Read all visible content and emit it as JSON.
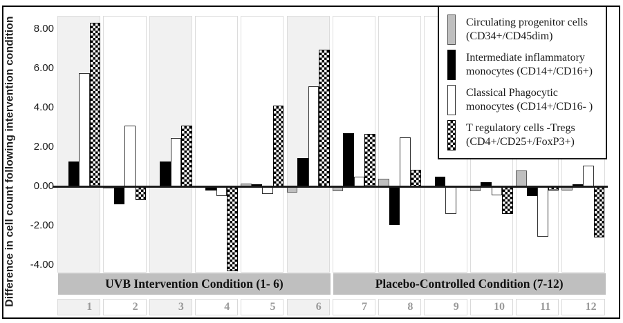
{
  "figure": {
    "y_axis_title": "Difference in cell count following intervention condition"
  },
  "colors": {
    "gray_bar": "#bfbfbf",
    "black_bar": "#000000",
    "white_bar": "#ffffff",
    "checker_fg": "#000000",
    "band_background": "#bfbfbf",
    "panel_shade": "#f1f1f1",
    "category_number_color": "#999999"
  },
  "chart_data": {
    "type": "bar",
    "title": "",
    "xlabel": "",
    "ylabel": "Difference in cell count following intervention condition",
    "categories": [
      "1",
      "2",
      "3",
      "4",
      "5",
      "6",
      "7",
      "8",
      "9",
      "10",
      "11",
      "12"
    ],
    "y_tick_labels": [
      "8.00",
      "6.00",
      "4.00",
      "2.00",
      "0.00",
      "-2.00",
      "-4.00"
    ],
    "y_tick_values": [
      8,
      6,
      4,
      2,
      0,
      -2,
      -4
    ],
    "ylim": [
      -4.6,
      8.7
    ],
    "grid": "off",
    "legend_position": "top-right-inset",
    "shaded_groups": [
      1,
      3,
      6
    ],
    "series": [
      {
        "name": "Circulating progenitor cells (CD34+/CD45dim)",
        "legend_line1": "Circulating progenitor cells",
        "legend_line2": "(CD34+/CD45dim)",
        "style": "gray",
        "values": [
          0,
          -0.1,
          0,
          0,
          0.15,
          -0.3,
          -0.25,
          0.4,
          0,
          -0.25,
          0.8,
          -0.2
        ]
      },
      {
        "name": "Intermediate inflammatory monocytes (CD14+/CD16+)",
        "legend_line1": "Intermediate inflammatory",
        "legend_line2": "monocytes (CD14+/CD16+)",
        "style": "black",
        "values": [
          1.25,
          -0.9,
          1.25,
          -0.2,
          0.1,
          1.45,
          2.7,
          -1.95,
          0.5,
          0.2,
          -0.5,
          0.1
        ]
      },
      {
        "name": "Classical Phagocytic monocytes (CD14+/CD16- )",
        "legend_line1": "Classical Phagocytic",
        "legend_line2": "monocytes (CD14+/CD16- )",
        "style": "white",
        "values": [
          5.75,
          3.1,
          2.45,
          -0.5,
          -0.4,
          5.1,
          0.5,
          2.5,
          -1.4,
          -0.45,
          -2.55,
          1.05
        ]
      },
      {
        "name": "T regulatory cells -Tregs (CD4+/CD25+/FoxP3+)",
        "legend_line1": "T regulatory cells -Tregs",
        "legend_line2": "(CD4+/CD25+/FoxP3+)",
        "style": "checker",
        "values": [
          8.3,
          -0.7,
          3.1,
          -4.3,
          4.1,
          6.95,
          2.65,
          0.85,
          0,
          -1.4,
          -0.2,
          -2.6
        ]
      }
    ],
    "condition_bands": [
      {
        "label": "UVB Intervention Condition (1- 6)",
        "start_group": 1,
        "end_group": 6
      },
      {
        "label": "Placebo-Controlled Condition (7-12)",
        "start_group": 7,
        "end_group": 12
      }
    ]
  }
}
